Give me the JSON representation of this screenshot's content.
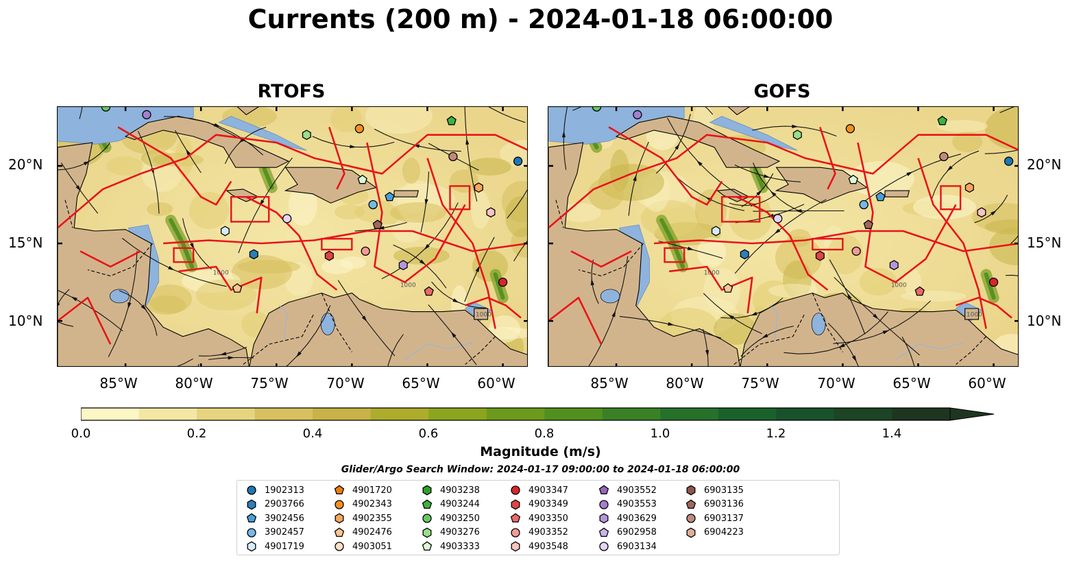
{
  "title": "Currents (200 m) - 2024-01-18 06:00:00",
  "panels": [
    {
      "title": "RTOFS"
    },
    {
      "title": "GOFS"
    }
  ],
  "axes": {
    "lat_ticks": [
      "20°N",
      "15°N",
      "10°N"
    ],
    "lon_ticks": [
      "85°W",
      "80°W",
      "75°W",
      "70°W",
      "65°W",
      "60°W"
    ]
  },
  "colorbar": {
    "label": "Magnitude (m/s)",
    "ticks": [
      "0.0",
      "0.2",
      "0.4",
      "0.6",
      "0.8",
      "1.0",
      "1.2",
      "1.4"
    ],
    "range": [
      0.0,
      1.5
    ],
    "extend": "max",
    "colors": [
      "#fdf7c6",
      "#f3e7a3",
      "#e6d47f",
      "#d7c05f",
      "#c7b347",
      "#adac2d",
      "#8ba51f",
      "#6c9a1c",
      "#51901e",
      "#3a8125",
      "#25712a",
      "#19622c",
      "#18522a",
      "#1c4425",
      "#1e3620"
    ]
  },
  "search_window": "Glider/Argo Search Window: 2024-01-17 09:00:00 to 2024-01-18 06:00:00",
  "legend": [
    {
      "id": "1902313",
      "marker": "circle",
      "color": "#1f77b4"
    },
    {
      "id": "2903766",
      "marker": "hexagon",
      "color": "#2c7fb8"
    },
    {
      "id": "3902456",
      "marker": "pentagon",
      "color": "#4a9fd8"
    },
    {
      "id": "3902457",
      "marker": "circle",
      "color": "#74b9e6"
    },
    {
      "id": "4901719",
      "marker": "hexagon",
      "color": "#d6ecfa"
    },
    {
      "id": "4901720",
      "marker": "pentagon",
      "color": "#f07c0d"
    },
    {
      "id": "4902343",
      "marker": "circle",
      "color": "#f5901f"
    },
    {
      "id": "4902355",
      "marker": "hexagon",
      "color": "#f9a65a"
    },
    {
      "id": "4902476",
      "marker": "pentagon",
      "color": "#fbc68e"
    },
    {
      "id": "4903051",
      "marker": "circle",
      "color": "#fde0c5"
    },
    {
      "id": "4903238",
      "marker": "hexagon",
      "color": "#2ca02c"
    },
    {
      "id": "4903244",
      "marker": "pentagon",
      "color": "#3cb43c"
    },
    {
      "id": "4903250",
      "marker": "circle",
      "color": "#63c963"
    },
    {
      "id": "4903276",
      "marker": "hexagon",
      "color": "#98df8a"
    },
    {
      "id": "4903333",
      "marker": "pentagon",
      "color": "#ddf6d5"
    },
    {
      "id": "4903347",
      "marker": "circle",
      "color": "#d62728"
    },
    {
      "id": "4903349",
      "marker": "hexagon",
      "color": "#e04545"
    },
    {
      "id": "4903350",
      "marker": "pentagon",
      "color": "#e86a6a"
    },
    {
      "id": "4903352",
      "marker": "circle",
      "color": "#f09a9a"
    },
    {
      "id": "4903548",
      "marker": "hexagon",
      "color": "#f7c3c3"
    },
    {
      "id": "4903552",
      "marker": "pentagon",
      "color": "#9467bd"
    },
    {
      "id": "4903553",
      "marker": "circle",
      "color": "#a57fcc"
    },
    {
      "id": "4903629",
      "marker": "hexagon",
      "color": "#b596db"
    },
    {
      "id": "6902958",
      "marker": "pentagon",
      "color": "#cbb2e8"
    },
    {
      "id": "6903134",
      "marker": "circle",
      "color": "#e4d5f6"
    },
    {
      "id": "6903135",
      "marker": "hexagon",
      "color": "#8c564b"
    },
    {
      "id": "6903136",
      "marker": "pentagon",
      "color": "#a0685c"
    },
    {
      "id": "6903137",
      "marker": "circle",
      "color": "#c08a7c"
    },
    {
      "id": "6904223",
      "marker": "hexagon",
      "color": "#e0ad9b"
    }
  ],
  "floats": [
    {
      "legend": "4903250",
      "lon": -86.3,
      "lat": 23.8
    },
    {
      "legend": "4903553",
      "lon": -83.6,
      "lat": 23.3
    },
    {
      "legend": "4903276",
      "lon": -73.0,
      "lat": 22.0
    },
    {
      "legend": "4902343",
      "lon": -69.5,
      "lat": 22.4
    },
    {
      "legend": "4903244",
      "lon": -63.4,
      "lat": 22.9
    },
    {
      "legend": "1902313",
      "lon": -59.0,
      "lat": 20.3
    },
    {
      "legend": "6903137",
      "lon": -63.3,
      "lat": 20.6
    },
    {
      "legend": "4903333",
      "lon": -69.3,
      "lat": 19.1
    },
    {
      "legend": "3902456",
      "lon": -67.5,
      "lat": 18.0
    },
    {
      "legend": "3902457",
      "lon": -68.6,
      "lat": 17.5
    },
    {
      "legend": "4902355",
      "lon": -61.6,
      "lat": 18.6
    },
    {
      "legend": "4903548",
      "lon": -60.8,
      "lat": 17.0
    },
    {
      "legend": "6903134",
      "lon": -74.3,
      "lat": 16.6
    },
    {
      "legend": "4901719",
      "lon": -78.4,
      "lat": 15.8
    },
    {
      "legend": "6903136",
      "lon": -68.3,
      "lat": 16.2
    },
    {
      "legend": "2903766",
      "lon": -76.5,
      "lat": 14.3
    },
    {
      "legend": "4903349",
      "lon": -71.5,
      "lat": 14.2
    },
    {
      "legend": "4903352",
      "lon": -69.1,
      "lat": 14.5
    },
    {
      "legend": "4903629",
      "lon": -66.6,
      "lat": 13.6
    },
    {
      "legend": "4902476",
      "lon": -77.6,
      "lat": 12.1
    },
    {
      "legend": "4903350",
      "lon": -64.9,
      "lat": 11.9
    },
    {
      "legend": "4903347",
      "lon": -60.0,
      "lat": 12.5
    }
  ]
}
